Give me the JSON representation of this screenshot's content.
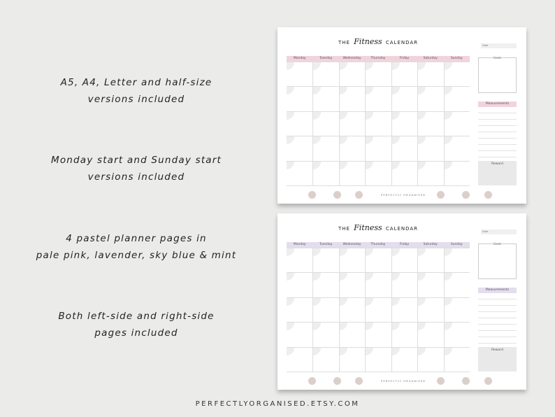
{
  "features": [
    {
      "line1": "A5, A4, Letter and half-size",
      "line2": "versions included"
    },
    {
      "line1": "Monday start and Sunday start",
      "line2": "versions included"
    },
    {
      "line1": "4 pastel planner pages in",
      "line2": "pale pink, lavender, sky blue & mint"
    },
    {
      "line1": "Both left-side and right-side",
      "line2": "pages included"
    }
  ],
  "footer": "PERFECTLYORGANISED.ETSY.COM",
  "planner": {
    "title_prefix": "THE",
    "title_script": "Fitness",
    "title_suffix": "CALENDAR",
    "days": [
      "Monday",
      "Tuesday",
      "Wednesday",
      "Thursday",
      "Friday",
      "Saturday",
      "Sunday"
    ],
    "date_label": "Date",
    "goals_label": "Goals",
    "measurements_label": "Measurements",
    "reward_label": "Reward",
    "brand": "PERFECTLY ORGANISED"
  },
  "pages": [
    {
      "accent": "#f2d3dc"
    },
    {
      "accent": "#e4ddee"
    }
  ]
}
